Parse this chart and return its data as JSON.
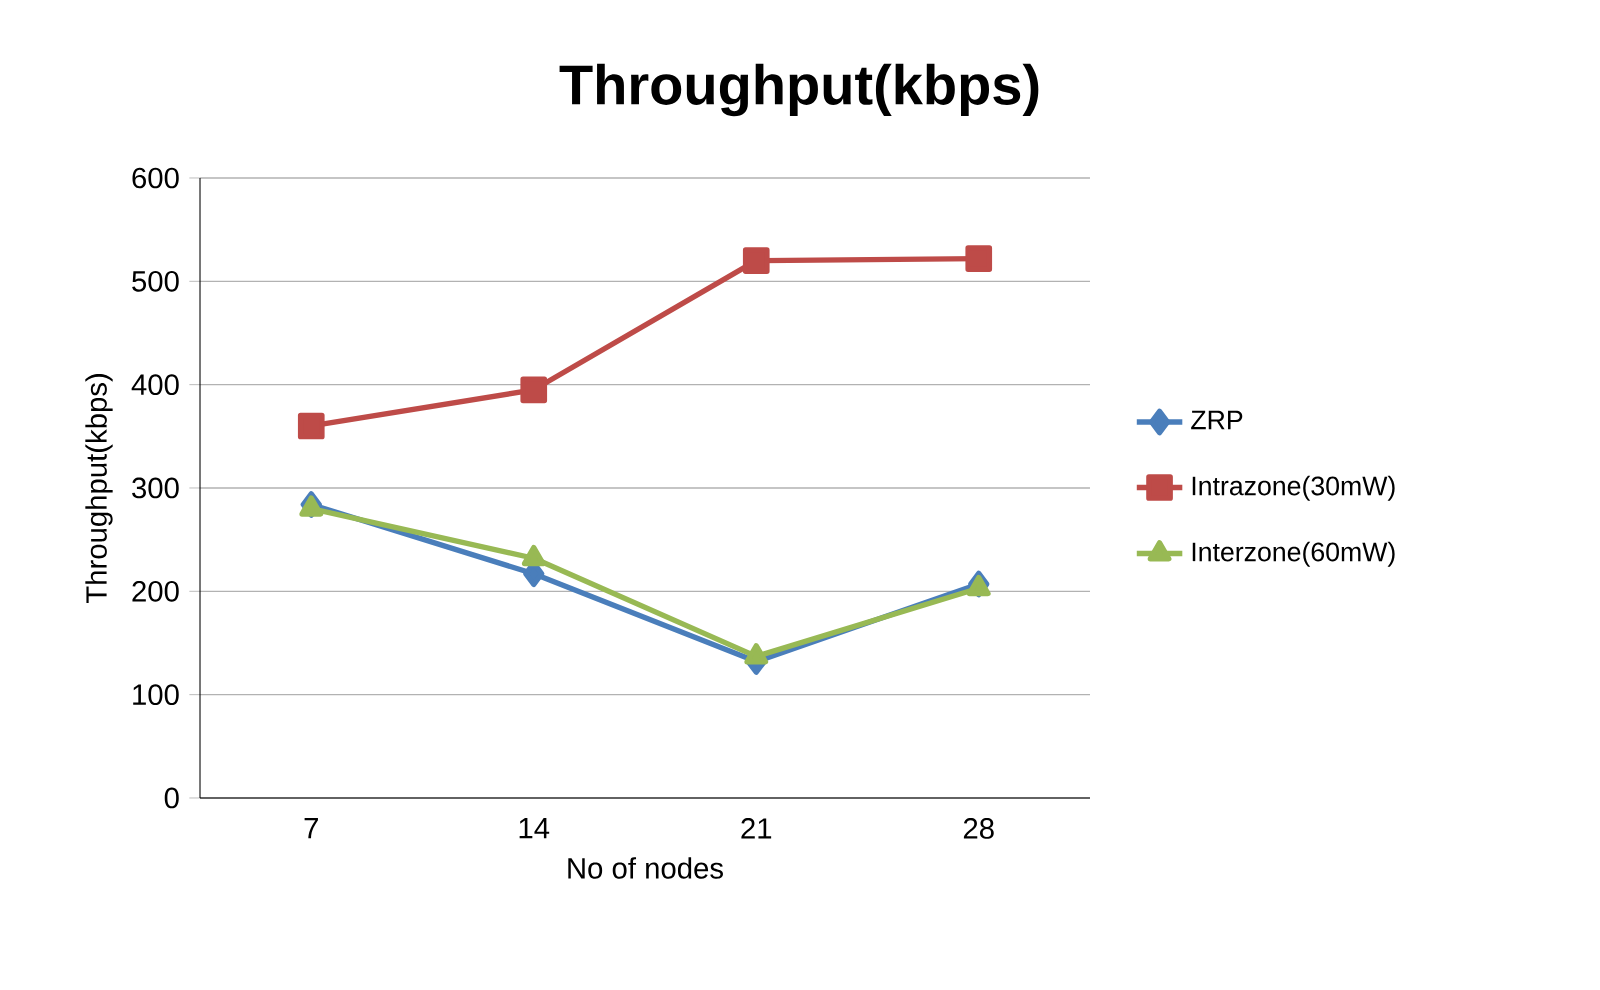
{
  "chart_data": {
    "type": "line",
    "title": "Throughput(kbps)",
    "xlabel": "No of nodes",
    "ylabel": "Throughput(kbps)",
    "categories": [
      "7",
      "14",
      "21",
      "28"
    ],
    "series": [
      {
        "name": "ZRP",
        "color": "#4a7ebb",
        "marker": "diamond",
        "values": [
          284,
          217,
          132,
          207
        ]
      },
      {
        "name": "Intrazone(30mW)",
        "color": "#be4b48",
        "marker": "square",
        "values": [
          360,
          395,
          520,
          522
        ]
      },
      {
        "name": "Interzone(60mW)",
        "color": "#98b954",
        "marker": "triangle",
        "values": [
          280,
          232,
          137,
          203
        ]
      }
    ],
    "ylim": [
      0,
      600
    ],
    "yticks": [
      0,
      100,
      200,
      300,
      400,
      500,
      600
    ],
    "grid": "y",
    "legend": "right"
  }
}
